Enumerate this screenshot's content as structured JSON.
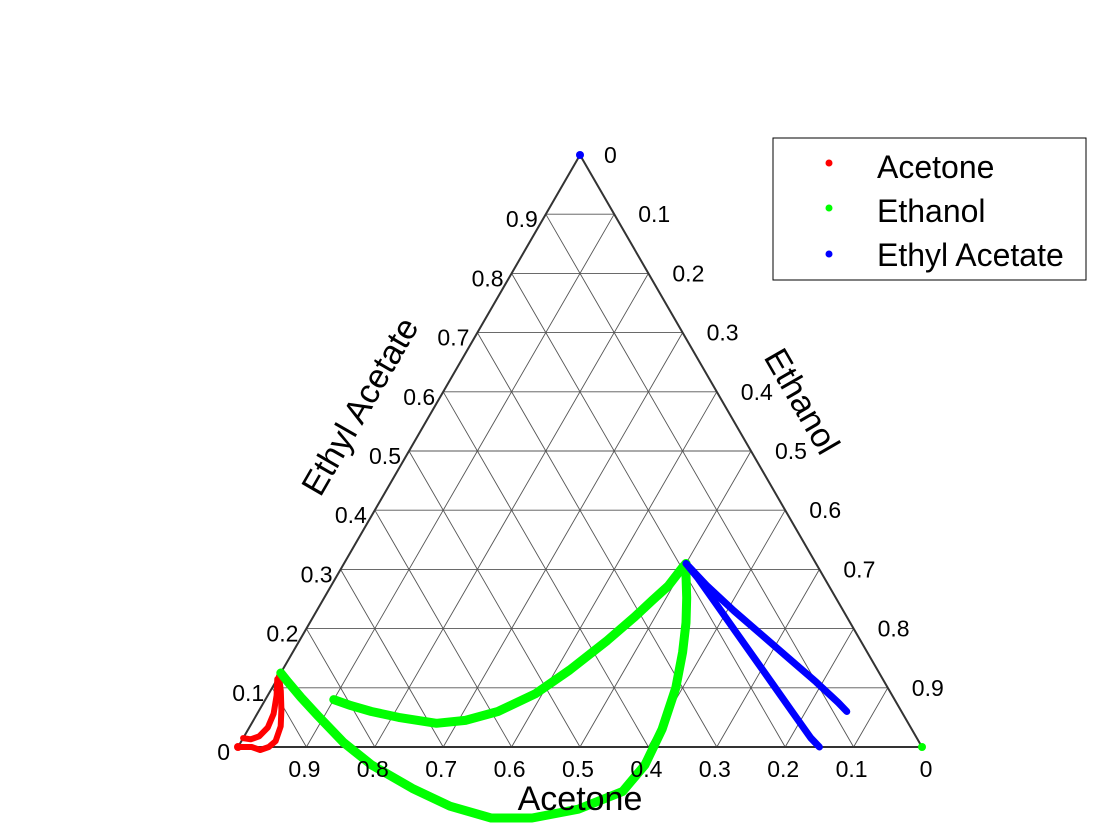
{
  "chart_data": {
    "type": "ternary",
    "axes": {
      "bottom": {
        "label": "Acetone",
        "ticks": [
          "0",
          "0.1",
          "0.2",
          "0.3",
          "0.4",
          "0.5",
          "0.6",
          "0.7",
          "0.8",
          "0.9"
        ]
      },
      "right": {
        "label": "Ethanol",
        "ticks": [
          "0",
          "0.1",
          "0.2",
          "0.3",
          "0.4",
          "0.5",
          "0.6",
          "0.7",
          "0.8",
          "0.9"
        ]
      },
      "left": {
        "label": "Ethyl Acetate",
        "ticks": [
          "0",
          "0.1",
          "0.2",
          "0.3",
          "0.4",
          "0.5",
          "0.6",
          "0.7",
          "0.8",
          "0.9"
        ]
      }
    },
    "grid": true,
    "legend": {
      "placement": "top-right",
      "entries": [
        {
          "label": "Acetone",
          "color": "#ff0000"
        },
        {
          "label": "Ethanol",
          "color": "#00ff00"
        },
        {
          "label": "Ethyl Acetate",
          "color": "#0000ff"
        }
      ]
    },
    "vertex_markers": [
      {
        "name": "Acetone",
        "acetone": 1.0,
        "ethanol": 0.0,
        "ethyl_acetate": 0.0,
        "color": "#ff0000"
      },
      {
        "name": "Ethanol",
        "acetone": 0.0,
        "ethanol": 1.0,
        "ethyl_acetate": 0.0,
        "color": "#00ff00"
      },
      {
        "name": "Ethyl Acetate",
        "acetone": 0.0,
        "ethanol": 0.0,
        "ethyl_acetate": 1.0,
        "color": "#0000ff"
      }
    ],
    "series": [
      {
        "color": "#ff0000",
        "stroke": 6,
        "points": [
          [
            1.0,
            0.0
          ],
          [
            0.99,
            0.01
          ],
          [
            0.98,
            0.02
          ],
          [
            0.97,
            0.035
          ],
          [
            0.955,
            0.045
          ],
          [
            0.94,
            0.05
          ],
          [
            0.92,
            0.045
          ],
          [
            0.905,
            0.032
          ],
          [
            0.89,
            0.015
          ],
          [
            0.88,
            0.0
          ]
        ]
      },
      {
        "color": "#ff0000",
        "stroke": 6,
        "points": [
          [
            0.985,
            0.0
          ],
          [
            0.975,
            0.012
          ],
          [
            0.96,
            0.022
          ],
          [
            0.94,
            0.027
          ],
          [
            0.92,
            0.024
          ],
          [
            0.9,
            0.013
          ],
          [
            0.885,
            0.0
          ]
        ]
      },
      {
        "color": "#00ff00",
        "stroke": 9,
        "points": [
          [
            0.875,
            0.0
          ],
          [
            0.872,
            0.018
          ],
          [
            0.866,
            0.05
          ],
          [
            0.857,
            0.09
          ],
          [
            0.842,
            0.15
          ],
          [
            0.82,
            0.21
          ],
          [
            0.78,
            0.29
          ],
          [
            0.74,
            0.36
          ],
          [
            0.69,
            0.43
          ],
          [
            0.63,
            0.49
          ],
          [
            0.555,
            0.55
          ],
          [
            0.475,
            0.6
          ],
          [
            0.42,
            0.61
          ],
          [
            0.365,
            0.605
          ],
          [
            0.31,
            0.59
          ],
          [
            0.27,
            0.57
          ],
          [
            0.24,
            0.55
          ],
          [
            0.218,
            0.53
          ],
          [
            0.2,
            0.51
          ],
          [
            0.19,
            0.5
          ]
        ]
      },
      {
        "color": "#00ff00",
        "stroke": 9,
        "points": [
          [
            0.82,
            0.1
          ],
          [
            0.8,
            0.13
          ],
          [
            0.775,
            0.165
          ],
          [
            0.74,
            0.21
          ],
          [
            0.69,
            0.27
          ],
          [
            0.645,
            0.31
          ],
          [
            0.59,
            0.35
          ],
          [
            0.52,
            0.39
          ],
          [
            0.45,
            0.42
          ],
          [
            0.37,
            0.45
          ],
          [
            0.31,
            0.47
          ],
          [
            0.27,
            0.482
          ],
          [
            0.235,
            0.493
          ],
          [
            0.2,
            0.498
          ],
          [
            0.19,
            0.5
          ]
        ]
      },
      {
        "color": "#0000ff",
        "stroke": 7,
        "points": [
          [
            0.19,
            0.5
          ],
          [
            0.185,
            0.53
          ],
          [
            0.18,
            0.58
          ],
          [
            0.175,
            0.63
          ],
          [
            0.17,
            0.68
          ],
          [
            0.165,
            0.73
          ],
          [
            0.16,
            0.78
          ],
          [
            0.155,
            0.83
          ],
          [
            0.15,
            0.85
          ]
        ]
      },
      {
        "color": "#0000ff",
        "stroke": 7,
        "points": [
          [
            0.19,
            0.5
          ],
          [
            0.178,
            0.55
          ],
          [
            0.16,
            0.61
          ],
          [
            0.14,
            0.67
          ],
          [
            0.12,
            0.73
          ],
          [
            0.1,
            0.79
          ],
          [
            0.085,
            0.84
          ],
          [
            0.08,
            0.86
          ]
        ]
      }
    ]
  }
}
